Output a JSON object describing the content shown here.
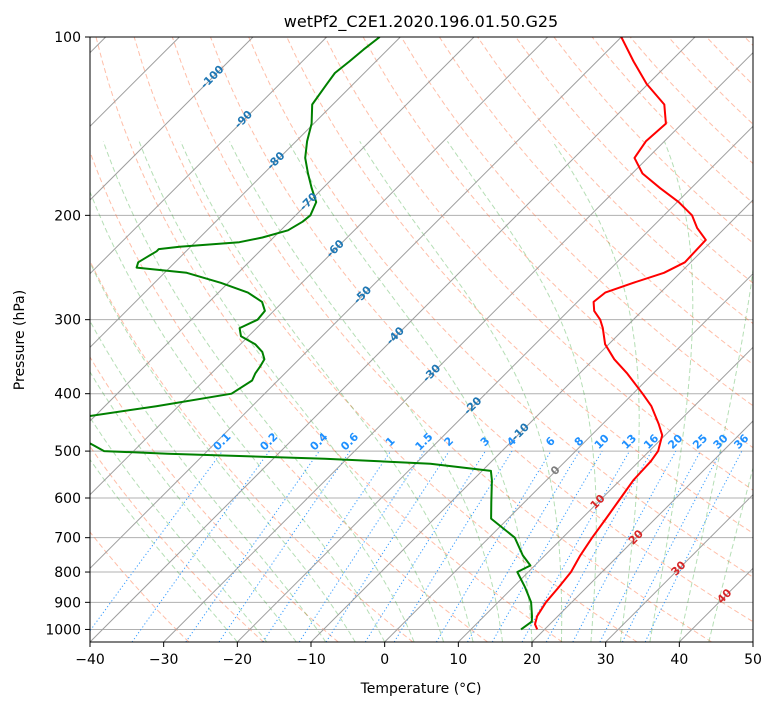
{
  "chart_data": {
    "type": "line",
    "subtype": "skew-T log-P diagram",
    "title": "wetPf2_C2E1.2020.196.01.50.G25",
    "xlabel": "Temperature (°C)",
    "ylabel": "Pressure (hPa)",
    "xlim": [
      -40,
      50
    ],
    "ylim": [
      1050,
      100
    ],
    "y_scale": "log",
    "x_ticks": [
      -40,
      -30,
      -20,
      -10,
      0,
      10,
      20,
      30,
      40,
      50
    ],
    "x_tick_labels": [
      "−40",
      "−30",
      "−20",
      "−10",
      "0",
      "10",
      "20",
      "30",
      "40",
      "50"
    ],
    "y_ticks": [
      100,
      200,
      300,
      400,
      500,
      600,
      700,
      800,
      900,
      1000
    ],
    "y_tick_labels": [
      "100",
      "200",
      "300",
      "400",
      "500",
      "600",
      "700",
      "800",
      "900",
      "1000"
    ],
    "grid": true,
    "series": [
      {
        "role": "temperature",
        "color": "#ff0000",
        "points": [
          [
            1000,
            19.0
          ],
          [
            980,
            18.0
          ],
          [
            950,
            17.2
          ],
          [
            900,
            16.5
          ],
          [
            850,
            16.2
          ],
          [
            800,
            15.8
          ],
          [
            750,
            14.8
          ],
          [
            700,
            14.0
          ],
          [
            650,
            13.3
          ],
          [
            600,
            12.5
          ],
          [
            560,
            11.8
          ],
          [
            520,
            11.6
          ],
          [
            500,
            11.2
          ],
          [
            470,
            9.6
          ],
          [
            450,
            7.6
          ],
          [
            420,
            4.2
          ],
          [
            400,
            1.3
          ],
          [
            370,
            -3.5
          ],
          [
            350,
            -7.2
          ],
          [
            330,
            -10.5
          ],
          [
            310,
            -13.0
          ],
          [
            300,
            -14.5
          ],
          [
            290,
            -16.5
          ],
          [
            280,
            -17.8
          ],
          [
            270,
            -17.5
          ],
          [
            260,
            -15.0
          ],
          [
            250,
            -12.2
          ],
          [
            240,
            -10.8
          ],
          [
            220,
            -11.0
          ],
          [
            210,
            -13.8
          ],
          [
            200,
            -16.2
          ],
          [
            190,
            -19.8
          ],
          [
            180,
            -24.2
          ],
          [
            170,
            -28.6
          ],
          [
            160,
            -31.8
          ],
          [
            150,
            -32.5
          ],
          [
            140,
            -32.2
          ],
          [
            130,
            -35.0
          ],
          [
            120,
            -40.2
          ],
          [
            110,
            -45.0
          ],
          [
            100,
            -50.0
          ]
        ]
      },
      {
        "role": "dewpoint",
        "color": "#008000",
        "points": [
          [
            1000,
            16.8
          ],
          [
            970,
            17.2
          ],
          [
            950,
            16.5
          ],
          [
            900,
            14.5
          ],
          [
            850,
            11.7
          ],
          [
            800,
            8.5
          ],
          [
            780,
            9.4
          ],
          [
            750,
            7.0
          ],
          [
            700,
            3.5
          ],
          [
            650,
            -2.3
          ],
          [
            610,
            -4.5
          ],
          [
            560,
            -7.4
          ],
          [
            540,
            -8.8
          ],
          [
            525,
            -18.0
          ],
          [
            515,
            -33.0
          ],
          [
            505,
            -55.0
          ],
          [
            500,
            -64.0
          ],
          [
            490,
            -66.0
          ],
          [
            480,
            -68.0
          ],
          [
            470,
            -70.0
          ],
          [
            460,
            -73.0
          ],
          [
            455,
            -75.0
          ],
          [
            450,
            -77.0
          ],
          [
            420,
            -63.0
          ],
          [
            400,
            -54.5
          ],
          [
            380,
            -53.5
          ],
          [
            370,
            -54.0
          ],
          [
            360,
            -54.3
          ],
          [
            350,
            -54.7
          ],
          [
            340,
            -56.0
          ],
          [
            330,
            -58.0
          ],
          [
            320,
            -61.0
          ],
          [
            310,
            -62.3
          ],
          [
            300,
            -61.0
          ],
          [
            290,
            -61.2
          ],
          [
            280,
            -62.8
          ],
          [
            270,
            -66.0
          ],
          [
            260,
            -71.0
          ],
          [
            250,
            -77.0
          ],
          [
            245,
            -84.5
          ],
          [
            240,
            -85.0
          ],
          [
            235,
            -84.5
          ],
          [
            230,
            -84.0
          ],
          [
            228,
            -84.0
          ],
          [
            226,
            -81.5
          ],
          [
            222,
            -74.0
          ],
          [
            218,
            -71.5
          ],
          [
            212,
            -69.0
          ],
          [
            205,
            -68.2
          ],
          [
            200,
            -68.0
          ],
          [
            190,
            -69.0
          ],
          [
            180,
            -71.5
          ],
          [
            170,
            -74.0
          ],
          [
            160,
            -76.5
          ],
          [
            150,
            -78.5
          ],
          [
            140,
            -80.3
          ],
          [
            130,
            -82.8
          ],
          [
            120,
            -83.6
          ],
          [
            115,
            -84.0
          ],
          [
            110,
            -83.6
          ],
          [
            105,
            -83.3
          ],
          [
            100,
            -82.8
          ]
        ]
      }
    ],
    "reference_lines": {
      "isotherms_step": 10,
      "dry_adiabats": "orange dashed",
      "moist_adiabats": "green dashed",
      "mixing_ratio_lines": "blue dotted"
    },
    "annotations": {
      "isotherm_labels": [
        {
          "t": -100,
          "p": 117,
          "text": "-100"
        },
        {
          "t": -90,
          "p": 138,
          "text": "-90"
        },
        {
          "t": -80,
          "p": 162,
          "text": "-80"
        },
        {
          "t": -70,
          "p": 190,
          "text": "-70"
        },
        {
          "t": -60,
          "p": 228,
          "text": "-60"
        },
        {
          "t": -50,
          "p": 273,
          "text": "-50"
        },
        {
          "t": -40,
          "p": 320,
          "text": "-40"
        },
        {
          "t": -30,
          "p": 370,
          "text": "-30"
        },
        {
          "t": -20,
          "p": 420,
          "text": "-20"
        },
        {
          "t": -10,
          "p": 465,
          "text": "-10"
        }
      ],
      "wet_bulb_labels": [
        {
          "t": 0,
          "p": 540,
          "text": "0"
        },
        {
          "t": 10,
          "p": 610,
          "text": "10"
        },
        {
          "t": 20,
          "p": 700,
          "text": "20"
        },
        {
          "t": 30,
          "p": 790,
          "text": "30"
        },
        {
          "t": 40,
          "p": 880,
          "text": "40"
        }
      ],
      "mixing_ratio_labels": [
        "0.1",
        "0.2",
        "0.4",
        "0.6",
        "1",
        "1.5",
        "2",
        "3",
        "4",
        "6",
        "8",
        "10",
        "13",
        "16",
        "20",
        "25",
        "30",
        "36"
      ]
    },
    "colors": {
      "temperature": "#ff0000",
      "dewpoint": "#008000",
      "isotherm_label": "#1f77b4",
      "mixing_ratio": "#1e90ff",
      "dry_adiabat": "#ff6f3f",
      "moist_adiabat": "#2ca02c",
      "wet_bulb_label": "#d62728",
      "zero_label": "#7f7f7f",
      "grid": "#b0b0b0"
    }
  }
}
